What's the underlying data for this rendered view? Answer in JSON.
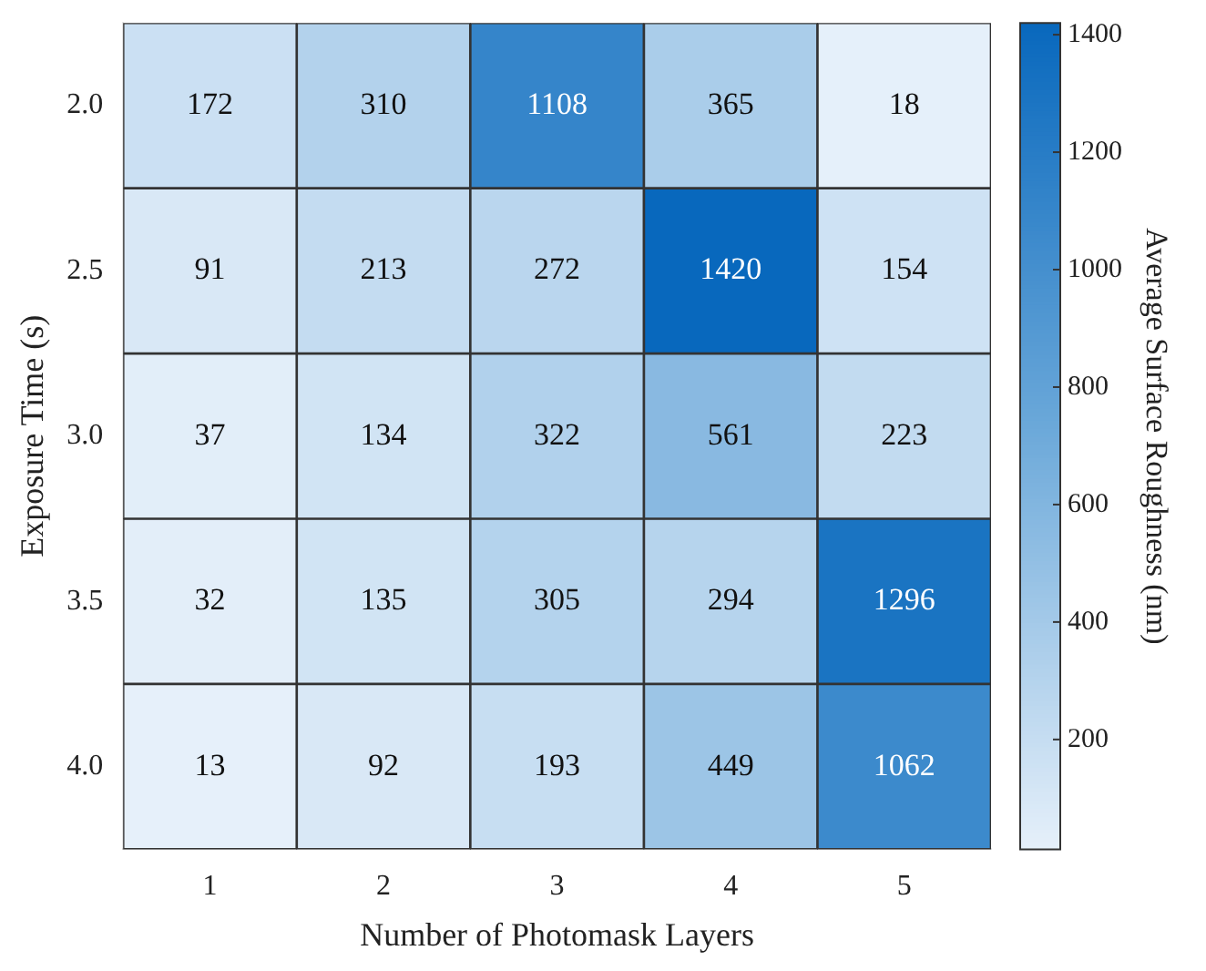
{
  "chart_data": {
    "type": "heatmap",
    "xlabel": "Number of Photomask Layers",
    "ylabel": "Exposure Time (s)",
    "clabel": "Average Surface Roughness (nm)",
    "categories": [
      "1",
      "2",
      "3",
      "4",
      "5"
    ],
    "y_categories": [
      "2.0",
      "2.5",
      "3.0",
      "3.5",
      "4.0"
    ],
    "cells": [
      [
        172,
        310,
        1108,
        365,
        18
      ],
      [
        91,
        213,
        272,
        1420,
        154
      ],
      [
        37,
        134,
        322,
        561,
        223
      ],
      [
        32,
        135,
        305,
        294,
        1296
      ],
      [
        13,
        92,
        193,
        449,
        1062
      ]
    ],
    "data_labels": true,
    "clim": [
      13,
      1420
    ],
    "cticks": [
      200,
      400,
      600,
      800,
      1000,
      1200,
      1400
    ]
  }
}
